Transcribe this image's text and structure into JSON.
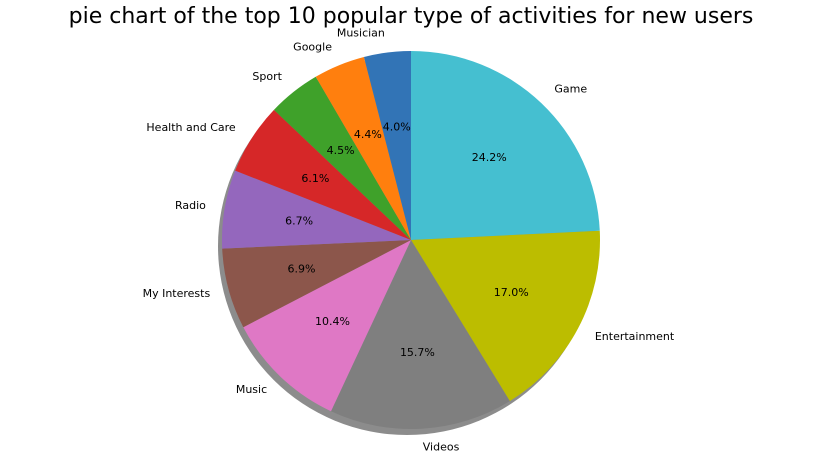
{
  "chart_data": {
    "type": "pie",
    "title": "pie chart of the top 10 popular type of activities for new users",
    "start_angle_deg": 90,
    "direction": "clockwise",
    "shadow": true,
    "legend": "none",
    "slices": [
      {
        "label": "Game",
        "value": 24.2,
        "pct_label": "24.2%",
        "color": "#45bfd0"
      },
      {
        "label": "Entertainment",
        "value": 17.0,
        "pct_label": "17.0%",
        "color": "#bcbd00"
      },
      {
        "label": "Videos",
        "value": 15.7,
        "pct_label": "15.7%",
        "color": "#7f7f7f"
      },
      {
        "label": "Music",
        "value": 10.4,
        "pct_label": "10.4%",
        "color": "#df78c5"
      },
      {
        "label": "My Interests",
        "value": 6.9,
        "pct_label": "6.9%",
        "color": "#8c564b"
      },
      {
        "label": "Radio",
        "value": 6.7,
        "pct_label": "6.7%",
        "color": "#9467bd"
      },
      {
        "label": "Health and Care",
        "value": 6.1,
        "pct_label": "6.1%",
        "color": "#d62728"
      },
      {
        "label": "Sport",
        "value": 4.5,
        "pct_label": "4.5%",
        "color": "#3fa12a"
      },
      {
        "label": "Google",
        "value": 4.4,
        "pct_label": "4.4%",
        "color": "#ff7f0e"
      },
      {
        "label": "Musician",
        "value": 4.0,
        "pct_label": "4.0%",
        "color": "#3274b6"
      }
    ]
  }
}
